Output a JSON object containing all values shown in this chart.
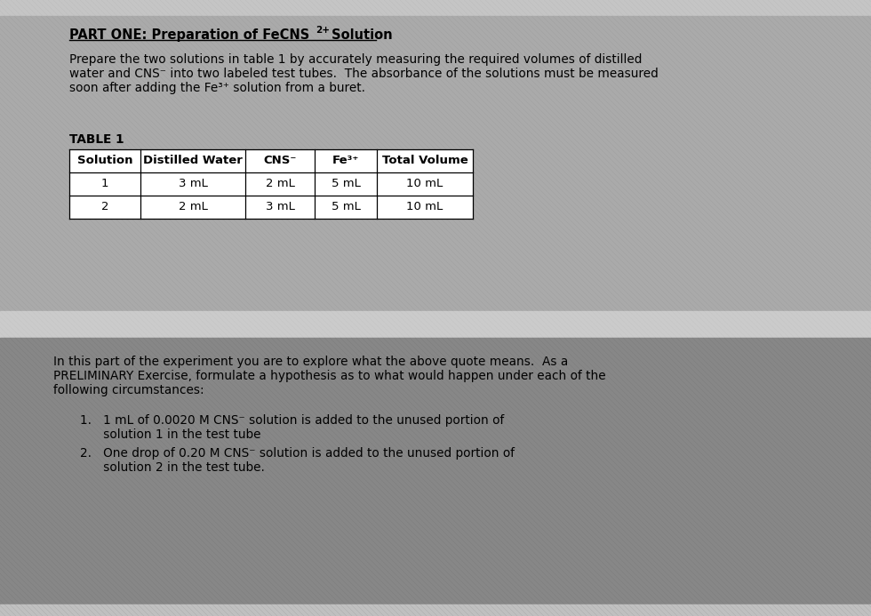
{
  "bg_top_color": "#b2b2b2",
  "bg_very_top": "#c8c8c8",
  "bg_separator": "#d0d0d0",
  "bg_bottom_color": "#888888",
  "title_text": "PART ONE: Preparation of FeCNS",
  "title_super": "2+",
  "title_suffix": " Solution",
  "para1_lines": [
    "Prepare the two solutions in table 1 by accurately measuring the required volumes of distilled",
    "water and CNS⁻ into two labeled test tubes.  The absorbance of the solutions must be measured",
    "soon after adding the Fe³⁺ solution from a buret."
  ],
  "table_label": "TABLE 1",
  "table_headers": [
    "Solution",
    "Distilled Water",
    "CNS⁻",
    "Fe³⁺",
    "Total Volume"
  ],
  "table_rows": [
    [
      "1",
      "3 mL",
      "2 mL",
      "5 mL",
      "10 mL"
    ],
    [
      "2",
      "2 mL",
      "3 mL",
      "5 mL",
      "10 mL"
    ]
  ],
  "para2_lines": [
    "In this part of the experiment you are to explore what the above quote means.  As a",
    "PRELIMINARY Exercise, formulate a hypothesis as to what would happen under each of the",
    "following circumstances:"
  ],
  "list_line1a": "1.   1 mL of 0.0020 M CNS⁻ solution is added to the unused portion of",
  "list_line1b": "      solution 1 in the test tube",
  "list_line2a": "2.   One drop of 0.20 M CNS⁻ solution is added to the unused portion of",
  "list_line2b": "      solution 2 in the test tube.",
  "font_size_title": 10.5,
  "font_size_body": 9.8,
  "font_size_table_hdr": 9.5,
  "font_size_table_data": 9.5
}
